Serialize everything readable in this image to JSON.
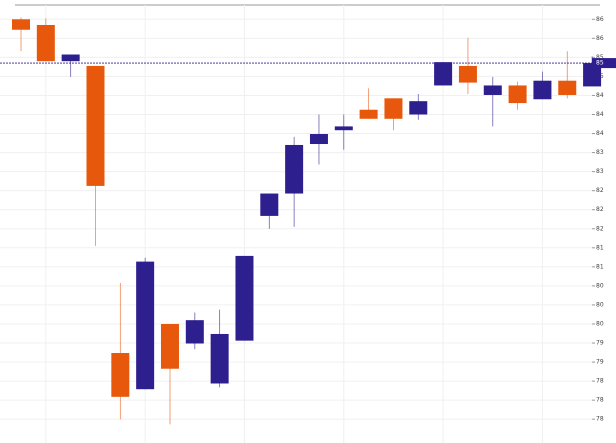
{
  "chart_data": {
    "type": "candlestick",
    "up_color": "#2e1f8f",
    "down_color": "#e8580c",
    "grid": true,
    "ylim": [
      77.5,
      86.7
    ],
    "yticks": [
      {
        "value": 86.4,
        "label": "86"
      },
      {
        "value": 86.0,
        "label": "86"
      },
      {
        "value": 85.6,
        "label": "85"
      },
      {
        "value": 85.2,
        "label": "85"
      },
      {
        "value": 84.8,
        "label": "84"
      },
      {
        "value": 84.4,
        "label": "84"
      },
      {
        "value": 84.0,
        "label": "84"
      },
      {
        "value": 83.6,
        "label": "83"
      },
      {
        "value": 83.2,
        "label": "83"
      },
      {
        "value": 82.8,
        "label": "82"
      },
      {
        "value": 82.4,
        "label": "82"
      },
      {
        "value": 82.0,
        "label": "82"
      },
      {
        "value": 81.6,
        "label": "81"
      },
      {
        "value": 81.2,
        "label": "81"
      },
      {
        "value": 80.8,
        "label": "80"
      },
      {
        "value": 80.4,
        "label": "80"
      },
      {
        "value": 80.0,
        "label": "80"
      },
      {
        "value": 79.6,
        "label": "79"
      },
      {
        "value": 79.2,
        "label": "79"
      },
      {
        "value": 78.8,
        "label": "78"
      },
      {
        "value": 78.4,
        "label": "78"
      },
      {
        "value": 78.0,
        "label": "78"
      }
    ],
    "current_price": {
      "value": 85.48,
      "label": "85"
    },
    "open": [
      86.4,
      86.28,
      85.52,
      85.42,
      79.39,
      78.63,
      80.0,
      79.59,
      78.75,
      79.65,
      82.27,
      82.74,
      83.78,
      84.07,
      84.5,
      84.74,
      84.4,
      85.01,
      85.42,
      84.81,
      85.01,
      84.72,
      85.11,
      84.99
    ],
    "high": [
      86.44,
      86.42,
      85.66,
      85.42,
      80.86,
      81.39,
      80.0,
      80.24,
      80.3,
      81.43,
      82.74,
      83.93,
      84.4,
      84.4,
      84.95,
      84.74,
      84.83,
      85.5,
      86.01,
      85.19,
      85.09,
      85.3,
      85.73,
      85.62
    ],
    "low": [
      85.73,
      85.52,
      85.19,
      81.64,
      78.0,
      78.63,
      77.89,
      79.47,
      78.67,
      79.65,
      82.0,
      82.04,
      83.35,
      83.66,
      84.31,
      84.07,
      84.29,
      85.01,
      84.83,
      84.15,
      84.5,
      84.72,
      84.74,
      84.99
    ],
    "close": [
      86.18,
      85.52,
      85.66,
      82.9,
      78.47,
      81.31,
      79.06,
      80.08,
      79.79,
      81.43,
      82.74,
      83.76,
      83.99,
      84.15,
      84.31,
      84.31,
      84.68,
      85.5,
      85.07,
      85.01,
      84.64,
      85.11,
      84.81,
      85.48
    ]
  }
}
